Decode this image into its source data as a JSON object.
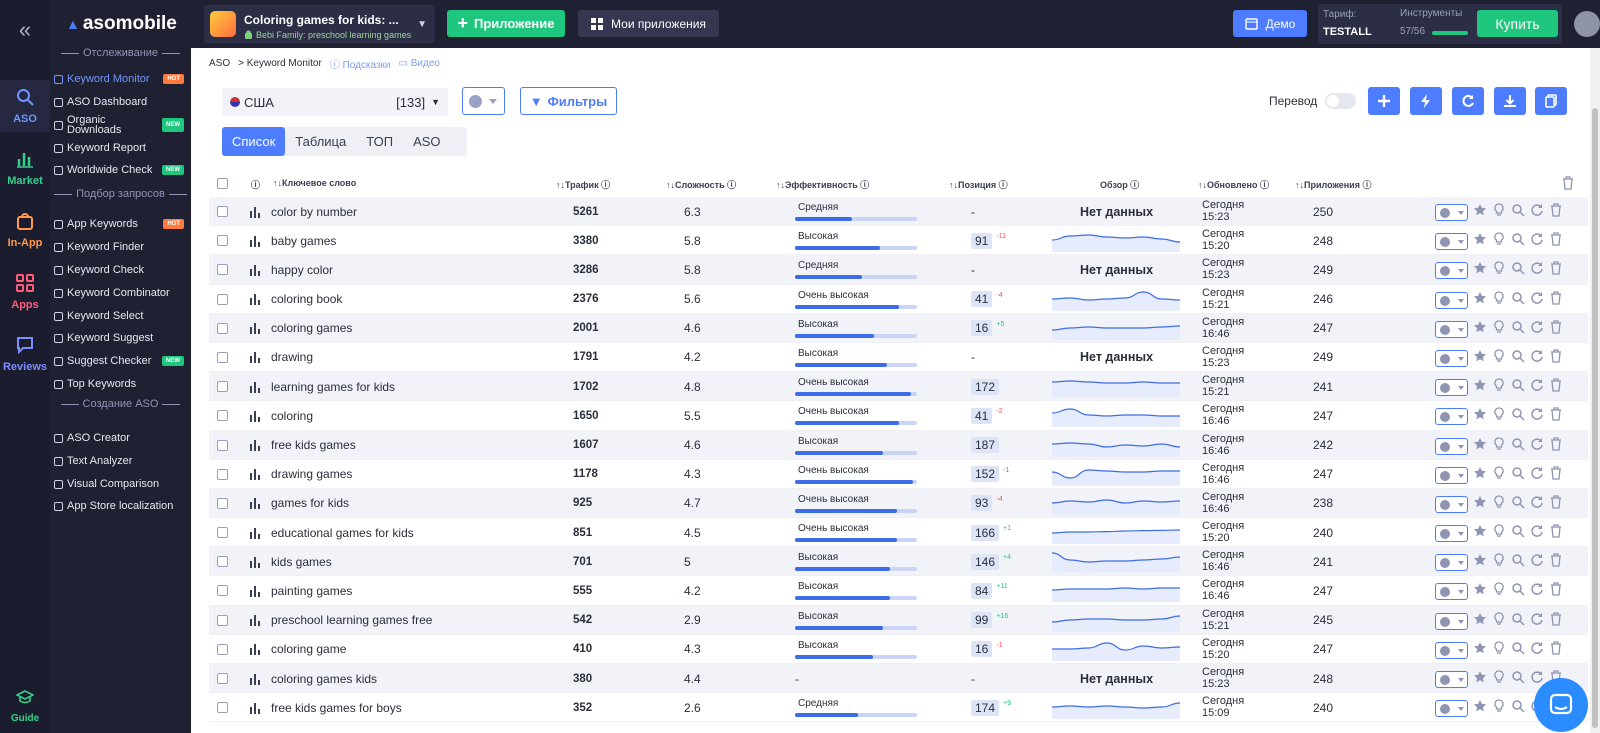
{
  "rail": {
    "items": [
      {
        "label": "ASO",
        "color": "#6f96ff"
      },
      {
        "label": "Market",
        "color": "#35d08d"
      },
      {
        "label": "In-App",
        "color": "#ff9a4a"
      },
      {
        "label": "Apps",
        "color": "#ff5c7a"
      },
      {
        "label": "Reviews",
        "color": "#7b8cff"
      }
    ],
    "guide": "Guide"
  },
  "logo": "asomobile",
  "menu": {
    "sections": [
      "Отслеживание",
      "Подбор запросов",
      "Создание ASO"
    ],
    "tracking": [
      {
        "label": "Keyword Monitor",
        "badge": "HOT"
      },
      {
        "label": "ASO Dashboard",
        "badge": ""
      },
      {
        "label": "Organic Downloads",
        "badge": "NEW"
      },
      {
        "label": "Keyword Report",
        "badge": ""
      },
      {
        "label": "Worldwide Check",
        "badge": "NEW"
      }
    ],
    "research": [
      {
        "label": "App Keywords",
        "badge": "HOT"
      },
      {
        "label": "Keyword Finder",
        "badge": ""
      },
      {
        "label": "Keyword Check",
        "badge": ""
      },
      {
        "label": "Keyword Combinator",
        "badge": ""
      },
      {
        "label": "Keyword Select",
        "badge": ""
      },
      {
        "label": "Keyword Suggest",
        "badge": ""
      },
      {
        "label": "Suggest Checker",
        "badge": "NEW"
      },
      {
        "label": "Top Keywords",
        "badge": ""
      }
    ],
    "creation": [
      {
        "label": "ASO Creator"
      },
      {
        "label": "Text Analyzer"
      },
      {
        "label": "Visual Comparison"
      },
      {
        "label": "App Store localization"
      }
    ]
  },
  "topbar": {
    "app_title": "Coloring games for kids: ...",
    "app_sub": "Bebi Family: preschool learning games",
    "add_app": "Приложение",
    "my_apps": "Мои приложения",
    "demo": "Демо",
    "tariff_label": "Тариф:",
    "tariff_value": "TESTALL",
    "tools_label": "Инструменты",
    "tools_value": "57/56",
    "tools_progress": 1.0,
    "buy": "Купить"
  },
  "crumbs": {
    "root": "ASO",
    "current": "> Keyword Monitor",
    "hints": "Подсказки",
    "video": "Видео"
  },
  "controls": {
    "country": "США",
    "country_count": "[133]",
    "filters": "Фильтры",
    "translate": "Перевод"
  },
  "tabs": [
    "Список",
    "Таблица",
    "ТОП",
    "ASO"
  ],
  "columns": {
    "keyword": "Ключевое слово",
    "traffic": "Трафик",
    "difficulty": "Сложность",
    "efficiency": "Эффективность",
    "position": "Позиция",
    "overview": "Обзор",
    "updated": "Обновлено",
    "apps": "Приложения"
  },
  "no_data": "Нет данных",
  "rows": [
    {
      "kw": "color by number",
      "traffic": "5261",
      "diff": "6.3",
      "eff": "Средняя",
      "effp": 0.47,
      "pos": "-",
      "delta": "",
      "updated": "Сегодня",
      "time": "15:23",
      "apps": "250"
    },
    {
      "kw": "baby games",
      "traffic": "3380",
      "diff": "5.8",
      "eff": "Высокая",
      "effp": 0.7,
      "pos": "91",
      "delta": "-11",
      "updated": "Сегодня",
      "time": "15:20",
      "apps": "248",
      "spark": [
        0.5,
        0.3,
        0.25,
        0.35,
        0.4,
        0.35,
        0.45,
        0.6
      ]
    },
    {
      "kw": "happy color",
      "traffic": "3286",
      "diff": "5.8",
      "eff": "Средняя",
      "effp": 0.55,
      "pos": "-",
      "delta": "",
      "updated": "Сегодня",
      "time": "15:23",
      "apps": "249"
    },
    {
      "kw": "coloring book",
      "traffic": "2376",
      "diff": "5.6",
      "eff": "Очень высокая",
      "effp": 0.85,
      "pos": "41",
      "delta": "-4",
      "updated": "Сегодня",
      "time": "15:21",
      "apps": "246",
      "spark": [
        0.5,
        0.45,
        0.55,
        0.5,
        0.45,
        0.15,
        0.5,
        0.55
      ]
    },
    {
      "kw": "coloring games",
      "traffic": "2001",
      "diff": "4.6",
      "eff": "Высокая",
      "effp": 0.65,
      "pos": "16",
      "delta": "+5",
      "updated": "Сегодня",
      "time": "16:46",
      "apps": "247",
      "spark": [
        0.6,
        0.5,
        0.45,
        0.5,
        0.5,
        0.5,
        0.45,
        0.4
      ]
    },
    {
      "kw": "drawing",
      "traffic": "1791",
      "diff": "4.2",
      "eff": "Высокая",
      "effp": 0.75,
      "pos": "-",
      "delta": "",
      "updated": "Сегодня",
      "time": "15:23",
      "apps": "249"
    },
    {
      "kw": "learning games for kids",
      "traffic": "1702",
      "diff": "4.8",
      "eff": "Очень высокая",
      "effp": 0.95,
      "pos": "172",
      "delta": "",
      "updated": "Сегодня",
      "time": "15:21",
      "apps": "241",
      "spark": [
        0.3,
        0.25,
        0.3,
        0.35,
        0.35,
        0.3,
        0.35,
        0.35
      ]
    },
    {
      "kw": "coloring",
      "traffic": "1650",
      "diff": "5.5",
      "eff": "Очень высокая",
      "effp": 0.85,
      "pos": "41",
      "delta": "-2",
      "updated": "Сегодня",
      "time": "16:46",
      "apps": "247",
      "spark": [
        0.4,
        0.2,
        0.5,
        0.55,
        0.5,
        0.5,
        0.55,
        0.55
      ]
    },
    {
      "kw": "free kids games",
      "traffic": "1607",
      "diff": "4.6",
      "eff": "Высокая",
      "effp": 0.72,
      "pos": "187",
      "delta": "",
      "updated": "Сегодня",
      "time": "16:46",
      "apps": "242",
      "spark": [
        0.45,
        0.4,
        0.45,
        0.6,
        0.5,
        0.55,
        0.45,
        0.6
      ]
    },
    {
      "kw": "drawing games",
      "traffic": "1178",
      "diff": "4.3",
      "eff": "Очень высокая",
      "effp": 0.97,
      "pos": "152",
      "delta": "-1",
      "updated": "Сегодня",
      "time": "16:46",
      "apps": "247",
      "spark": [
        0.4,
        0.7,
        0.3,
        0.35,
        0.4,
        0.4,
        0.35,
        0.35
      ]
    },
    {
      "kw": "games for kids",
      "traffic": "925",
      "diff": "4.7",
      "eff": "Очень высокая",
      "effp": 0.84,
      "pos": "93",
      "delta": "-4",
      "updated": "Сегодня",
      "time": "16:46",
      "apps": "238",
      "spark": [
        0.5,
        0.4,
        0.45,
        0.35,
        0.5,
        0.4,
        0.45,
        0.4
      ]
    },
    {
      "kw": "educational games for kids",
      "traffic": "851",
      "diff": "4.5",
      "eff": "Очень высокая",
      "effp": 0.84,
      "pos": "166",
      "delta": "+1",
      "updated": "Сегодня",
      "time": "15:20",
      "apps": "240",
      "spark": [
        0.55,
        0.5,
        0.5,
        0.48,
        0.45,
        0.43,
        0.42,
        0.4
      ]
    },
    {
      "kw": "kids games",
      "traffic": "701",
      "diff": "5",
      "eff": "Высокая",
      "effp": 0.78,
      "pos": "146",
      "delta": "+4",
      "updated": "Сегодня",
      "time": "16:46",
      "apps": "241",
      "spark": [
        0.1,
        0.45,
        0.55,
        0.5,
        0.5,
        0.45,
        0.4,
        0.3
      ]
    },
    {
      "kw": "painting games",
      "traffic": "555",
      "diff": "4.2",
      "eff": "Высокая",
      "effp": 0.78,
      "pos": "84",
      "delta": "+11",
      "updated": "Сегодня",
      "time": "16:46",
      "apps": "247",
      "spark": [
        0.5,
        0.45,
        0.45,
        0.45,
        0.4,
        0.45,
        0.4,
        0.4
      ]
    },
    {
      "kw": "preschool learning games free",
      "traffic": "542",
      "diff": "2.9",
      "eff": "Высокая",
      "effp": 0.72,
      "pos": "99",
      "delta": "+16",
      "updated": "Сегодня",
      "time": "15:21",
      "apps": "245",
      "spark": [
        0.6,
        0.5,
        0.45,
        0.45,
        0.5,
        0.5,
        0.45,
        0.3
      ]
    },
    {
      "kw": "coloring game",
      "traffic": "410",
      "diff": "4.3",
      "eff": "Высокая",
      "effp": 0.64,
      "pos": "16",
      "delta": "-1",
      "updated": "Сегодня",
      "time": "15:20",
      "apps": "247",
      "spark": [
        0.5,
        0.5,
        0.45,
        0.2,
        0.55,
        0.35,
        0.45,
        0.4
      ]
    },
    {
      "kw": "coloring games kids",
      "traffic": "380",
      "diff": "4.4",
      "eff": "-",
      "effp": 0,
      "pos": "-",
      "delta": "",
      "updated": "Сегодня",
      "time": "15:23",
      "apps": "248"
    },
    {
      "kw": "free kids games for boys",
      "traffic": "352",
      "diff": "2.6",
      "eff": "Средняя",
      "effp": 0.52,
      "pos": "174",
      "delta": "+9",
      "updated": "Сегодня",
      "time": "15:09",
      "apps": "240",
      "spark": [
        0.5,
        0.45,
        0.5,
        0.45,
        0.5,
        0.55,
        0.5,
        0.3
      ]
    }
  ]
}
